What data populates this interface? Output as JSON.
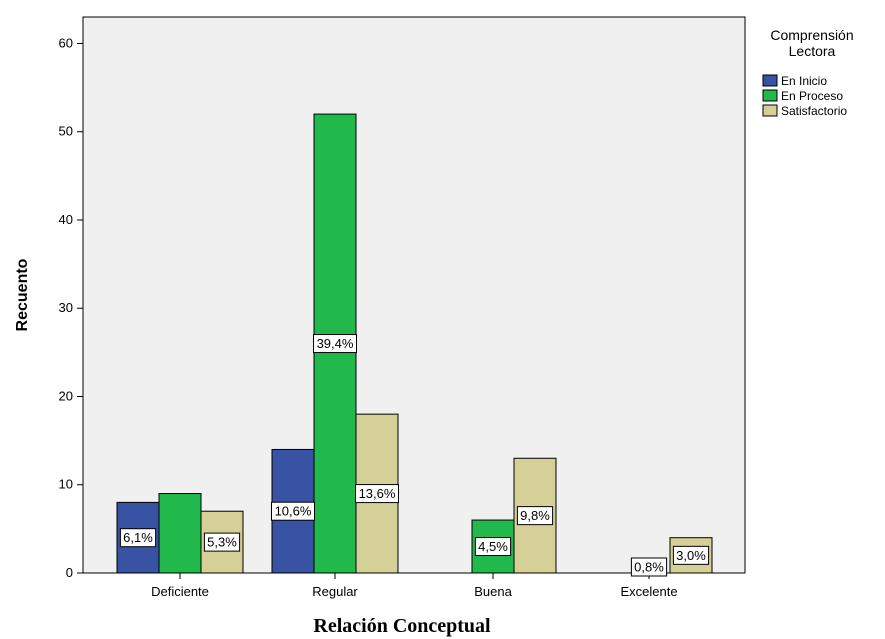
{
  "chart_data": {
    "type": "bar",
    "xlabel": "Relación Conceptual",
    "ylabel": "Recuento",
    "categories": [
      "Deficiente",
      "Regular",
      "Buena",
      "Excelente"
    ],
    "ylim": [
      0,
      63
    ],
    "yticks": [
      0,
      10,
      20,
      30,
      40,
      50,
      60
    ],
    "grid": false,
    "legend_position": "right",
    "legend_title": [
      "Comprensión",
      "Lectora"
    ],
    "series": [
      {
        "name": "En Inicio",
        "color": "#3953a4",
        "values": [
          8,
          14,
          0,
          0
        ],
        "labels": [
          "6,1%",
          "10,6%",
          "",
          ""
        ]
      },
      {
        "name": "En Proceso",
        "color": "#21b94c",
        "values": [
          9,
          52,
          6,
          0
        ],
        "labels": [
          "",
          "39,4%",
          "4,5%",
          ""
        ]
      },
      {
        "name": "Satisfactorio",
        "color": "#d5cf98",
        "values": [
          7,
          18,
          13,
          4
        ],
        "labels": [
          "5,3%",
          "13,6%",
          "9,8%",
          "3,0%"
        ]
      }
    ],
    "annotations": [
      {
        "category": "Excelente",
        "text": "0,8%"
      }
    ]
  }
}
